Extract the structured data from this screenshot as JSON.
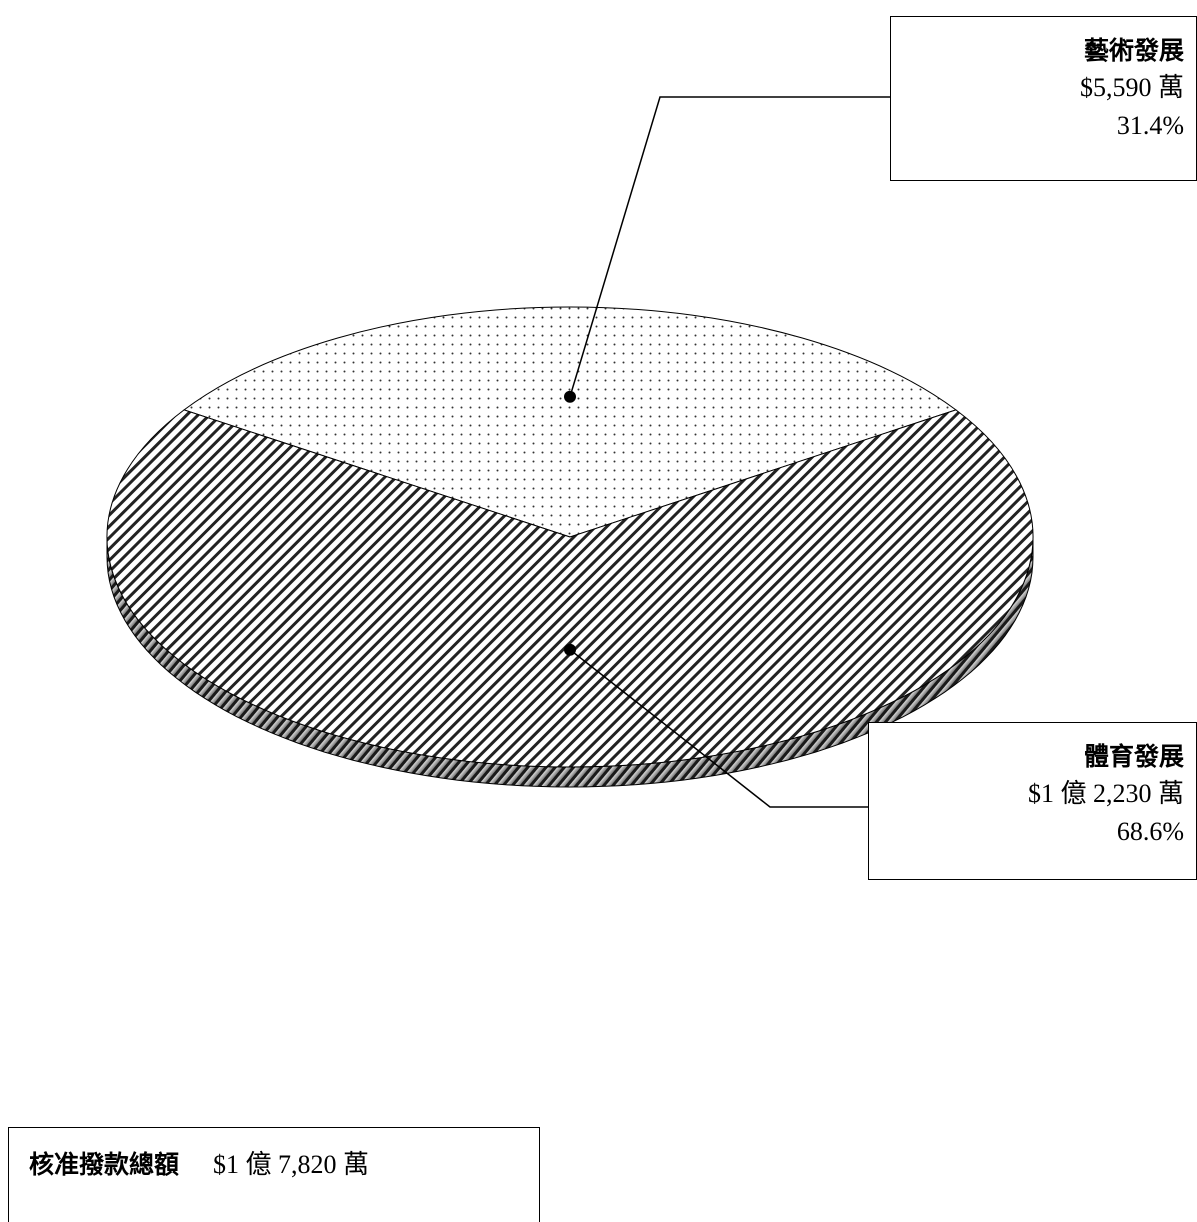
{
  "chart_data": {
    "type": "pie",
    "slices": [
      {
        "label": "藝術發展",
        "amount": "$5,590 萬",
        "value": 5590,
        "percent": "31.4%",
        "pattern": "dots"
      },
      {
        "label": "體育發展",
        "amount": "$1 億 2,230 萬",
        "value": 12230,
        "percent": "68.6%",
        "pattern": "diagonal-stripes"
      }
    ],
    "total": {
      "label": "核准撥款總額",
      "amount": "$1 億 7,820 萬"
    }
  },
  "colors": {
    "ink": "#000000",
    "background": "#ffffff",
    "edge": "#9a9a9a"
  }
}
